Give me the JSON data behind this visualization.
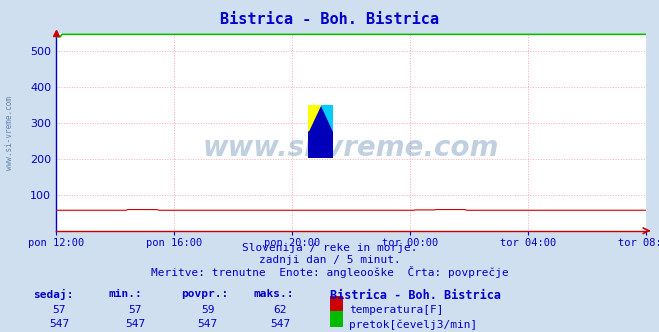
{
  "title": "Bistrica - Boh. Bistrica",
  "title_color": "#0000cc",
  "background_color": "#d0dff0",
  "plot_bg_color": "#ffffff",
  "x_labels": [
    "pon 12:00",
    "pon 16:00",
    "pon 20:00",
    "tor 00:00",
    "tor 04:00",
    "tor 08:00"
  ],
  "ylim": [
    0,
    550
  ],
  "yticks": [
    100,
    200,
    300,
    400,
    500
  ],
  "grid_color": "#ffaaaa",
  "grid_style": ":",
  "temperature_color": "#cc0000",
  "flow_color": "#00bb00",
  "temperature_value": 57,
  "flow_value": 547,
  "temp_max": 62,
  "temp_min": 57,
  "temp_avg": 59,
  "flow_max": 547,
  "flow_min": 547,
  "flow_avg": 547,
  "flow_sedaj": 547,
  "temp_sedaj": 57,
  "n_points": 288,
  "subtitle1": "Slovenija / reke in morje.",
  "subtitle2": "zadnji dan / 5 minut.",
  "subtitle3": "Meritve: trenutne  Enote: angleooške  Črta: povprečje",
  "legend_title": "Bistrica - Boh. Bistrica",
  "watermark": "www.si-vreme.com",
  "watermark_color": "#336699",
  "watermark_alpha": 0.3,
  "left_label": "www.si-vreme.com",
  "left_label_color": "#336699",
  "axis_color_bottom": "#cc0000",
  "axis_color_left": "#0000cc",
  "tick_color": "#0000cc",
  "subtitle_color": "#0000cc",
  "table_header_color": "#0000cc",
  "table_value_color": "#0000cc"
}
